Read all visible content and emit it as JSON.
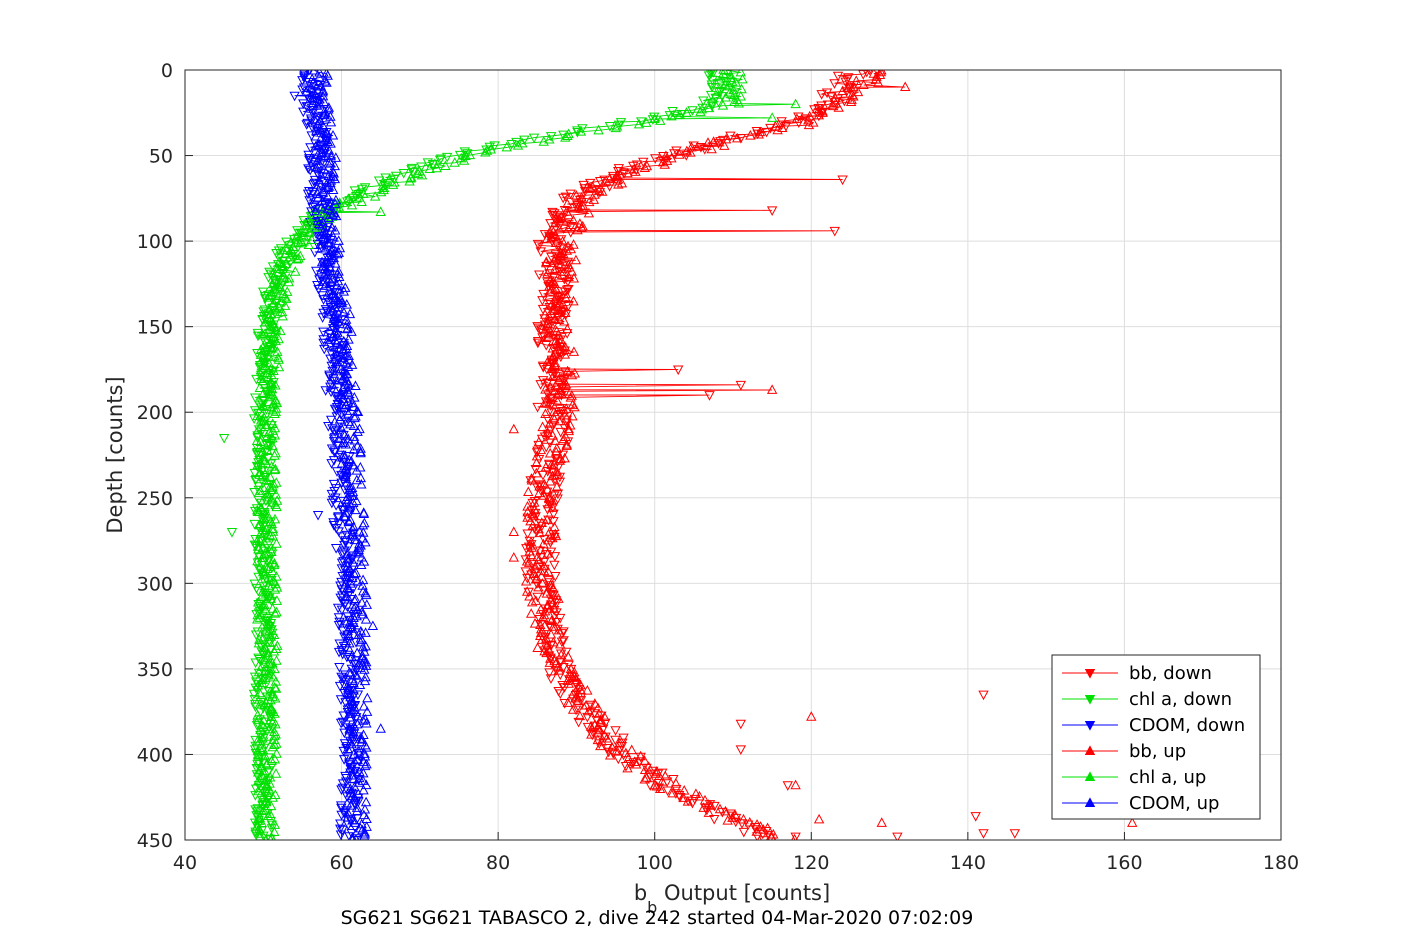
{
  "chart_data": {
    "type": "scatter",
    "title": "SG621 SG621 TABASCO 2, dive 242 started 04-Mar-2020 07:02:09",
    "xlabel_main": "b",
    "xlabel_sub": "b",
    "xlabel_rest": " Output [counts]",
    "ylabel": "Depth [counts]",
    "xlim": [
      40,
      180
    ],
    "ylim": [
      450,
      0
    ],
    "y_reversed": true,
    "xticks": [
      40,
      60,
      80,
      100,
      120,
      140,
      160,
      180
    ],
    "yticks": [
      0,
      50,
      100,
      150,
      200,
      250,
      300,
      350,
      400,
      450
    ],
    "grid": true,
    "legend_position": "bottom-right",
    "series": [
      {
        "name": "bb, down",
        "color": "#ff0000",
        "marker": "triangle-down",
        "direction": "down",
        "profile": [
          [
            0,
            126
          ],
          [
            8,
            124
          ],
          [
            16,
            123
          ],
          [
            24,
            121
          ],
          [
            32,
            117
          ],
          [
            40,
            110
          ],
          [
            48,
            103
          ],
          [
            56,
            98
          ],
          [
            64,
            94
          ],
          [
            72,
            91
          ],
          [
            80,
            89
          ],
          [
            90,
            88
          ],
          [
            100,
            87
          ],
          [
            110,
            87
          ],
          [
            120,
            87
          ],
          [
            140,
            87
          ],
          [
            160,
            87
          ],
          [
            180,
            87
          ],
          [
            200,
            87
          ],
          [
            220,
            87
          ],
          [
            240,
            86
          ],
          [
            260,
            85.5
          ],
          [
            280,
            85.5
          ],
          [
            300,
            85.5
          ],
          [
            320,
            86
          ],
          [
            340,
            87
          ],
          [
            360,
            89
          ],
          [
            380,
            92
          ],
          [
            400,
            96
          ],
          [
            420,
            102
          ],
          [
            435,
            108
          ],
          [
            445,
            113
          ],
          [
            450,
            116
          ]
        ],
        "jitter": 2.0,
        "outliers": [
          [
            64,
            124
          ],
          [
            82,
            115
          ],
          [
            94,
            123
          ],
          [
            175,
            103
          ],
          [
            184,
            111
          ],
          [
            190,
            107
          ],
          [
            365,
            142
          ],
          [
            382,
            111
          ],
          [
            397,
            111
          ],
          [
            418,
            117
          ],
          [
            436,
            141
          ],
          [
            446,
            142
          ],
          [
            446,
            146
          ],
          [
            448,
            131
          ],
          [
            448,
            118
          ]
        ]
      },
      {
        "name": "chl a, down",
        "color": "#00e000",
        "marker": "triangle-down",
        "direction": "down",
        "profile": [
          [
            0,
            108
          ],
          [
            10,
            108
          ],
          [
            20,
            107
          ],
          [
            28,
            100
          ],
          [
            34,
            92
          ],
          [
            40,
            85
          ],
          [
            46,
            78
          ],
          [
            52,
            73
          ],
          [
            58,
            69
          ],
          [
            64,
            66
          ],
          [
            70,
            63
          ],
          [
            76,
            60
          ],
          [
            82,
            58
          ],
          [
            88,
            56
          ],
          [
            95,
            55
          ],
          [
            105,
            53
          ],
          [
            115,
            52
          ],
          [
            130,
            51
          ],
          [
            150,
            50.5
          ],
          [
            200,
            50
          ],
          [
            250,
            50
          ],
          [
            300,
            50
          ],
          [
            350,
            50
          ],
          [
            400,
            50
          ],
          [
            450,
            50
          ]
        ],
        "jitter": 1.2,
        "outliers": [
          [
            215,
            45
          ],
          [
            270,
            46
          ],
          [
            372,
            49
          ]
        ]
      },
      {
        "name": "CDOM, down",
        "color": "#0000ff",
        "marker": "triangle-down",
        "direction": "down",
        "profile": [
          [
            0,
            56
          ],
          [
            20,
            56
          ],
          [
            40,
            57
          ],
          [
            60,
            57
          ],
          [
            80,
            57
          ],
          [
            100,
            57.5
          ],
          [
            120,
            58
          ],
          [
            140,
            58.5
          ],
          [
            160,
            59
          ],
          [
            180,
            59
          ],
          [
            200,
            59.5
          ],
          [
            250,
            60
          ],
          [
            300,
            60.5
          ],
          [
            350,
            61
          ],
          [
            400,
            61
          ],
          [
            450,
            61
          ]
        ],
        "jitter": 1.3,
        "outliers": [
          [
            15,
            54
          ],
          [
            260,
            57
          ]
        ]
      },
      {
        "name": "bb, up",
        "color": "#ff0000",
        "marker": "triangle-up",
        "direction": "up",
        "profile": [
          [
            0,
            128
          ],
          [
            8,
            127
          ],
          [
            16,
            125
          ],
          [
            24,
            122
          ],
          [
            32,
            118
          ],
          [
            40,
            111
          ],
          [
            48,
            104
          ],
          [
            56,
            99
          ],
          [
            64,
            95
          ],
          [
            72,
            92
          ],
          [
            80,
            90
          ],
          [
            90,
            89
          ],
          [
            100,
            88
          ],
          [
            120,
            88
          ],
          [
            140,
            88
          ],
          [
            160,
            88
          ],
          [
            180,
            88
          ],
          [
            200,
            88
          ],
          [
            220,
            87
          ],
          [
            240,
            86
          ],
          [
            260,
            85.5
          ],
          [
            280,
            85.5
          ],
          [
            300,
            85.5
          ],
          [
            320,
            86
          ],
          [
            340,
            87
          ],
          [
            360,
            89
          ],
          [
            380,
            92
          ],
          [
            400,
            96
          ],
          [
            420,
            102
          ],
          [
            435,
            108
          ],
          [
            445,
            114
          ],
          [
            450,
            116
          ]
        ],
        "jitter": 2.0,
        "outliers": [
          [
            10,
            132
          ],
          [
            210,
            82
          ],
          [
            270,
            82
          ],
          [
            285,
            82
          ],
          [
            378,
            120
          ],
          [
            418,
            118
          ],
          [
            438,
            121
          ],
          [
            440,
            129
          ],
          [
            440,
            161
          ],
          [
            187,
            115
          ]
        ]
      },
      {
        "name": "chl a, up",
        "color": "#00e000",
        "marker": "triangle-up",
        "direction": "up",
        "profile": [
          [
            0,
            110
          ],
          [
            10,
            110
          ],
          [
            20,
            110
          ],
          [
            28,
            102
          ],
          [
            34,
            94
          ],
          [
            40,
            87
          ],
          [
            46,
            80
          ],
          [
            52,
            75
          ],
          [
            58,
            71
          ],
          [
            64,
            68
          ],
          [
            70,
            65
          ],
          [
            76,
            62
          ],
          [
            82,
            59
          ],
          [
            88,
            57
          ],
          [
            95,
            56
          ],
          [
            105,
            54
          ],
          [
            115,
            53
          ],
          [
            130,
            52
          ],
          [
            150,
            51
          ],
          [
            200,
            50.5
          ],
          [
            250,
            50.5
          ],
          [
            300,
            50.5
          ],
          [
            350,
            50.5
          ],
          [
            400,
            50.5
          ],
          [
            450,
            50.5
          ]
        ],
        "jitter": 1.3,
        "outliers": [
          [
            83,
            65
          ],
          [
            20,
            118
          ],
          [
            28,
            115
          ]
        ]
      },
      {
        "name": "CDOM, up",
        "color": "#0000ff",
        "marker": "triangle-up",
        "direction": "up",
        "profile": [
          [
            0,
            57
          ],
          [
            20,
            57
          ],
          [
            40,
            58
          ],
          [
            60,
            58
          ],
          [
            80,
            58
          ],
          [
            100,
            58.5
          ],
          [
            120,
            59
          ],
          [
            140,
            60
          ],
          [
            160,
            60
          ],
          [
            180,
            61
          ],
          [
            200,
            61
          ],
          [
            250,
            61.5
          ],
          [
            300,
            62
          ],
          [
            350,
            62
          ],
          [
            400,
            62
          ],
          [
            450,
            62
          ]
        ],
        "jitter": 1.3,
        "outliers": [
          [
            385,
            65
          ],
          [
            325,
            64
          ]
        ]
      }
    ]
  }
}
